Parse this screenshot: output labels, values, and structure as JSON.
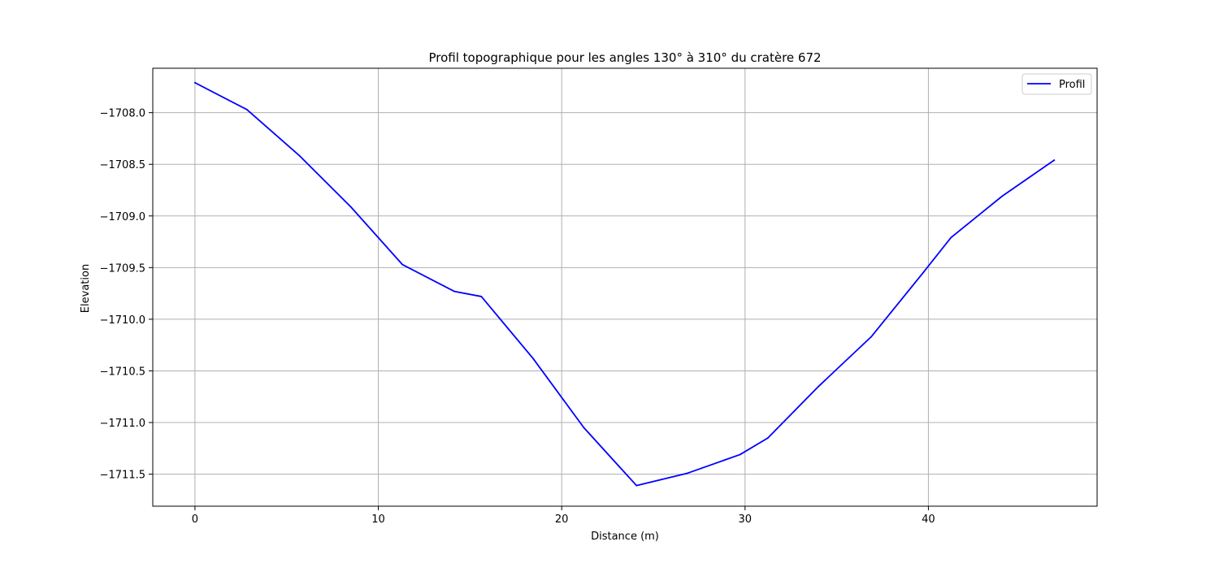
{
  "chart_data": {
    "type": "line",
    "title": "Profil topographique pour les angles 130° à 310° du cratère 672",
    "xlabel": "Distance (m)",
    "ylabel": "Elevation",
    "xlim": [
      -2.3,
      49.2
    ],
    "ylim": [
      -1711.81,
      -1707.57
    ],
    "xticks": [
      0,
      10,
      20,
      30,
      40
    ],
    "xtick_labels": [
      "0",
      "10",
      "20",
      "30",
      "40"
    ],
    "yticks": [
      -1708.0,
      -1708.5,
      -1709.0,
      -1709.5,
      -1710.0,
      -1710.5,
      -1711.0,
      -1711.5
    ],
    "ytick_labels": [
      "−1708.0",
      "−1708.5",
      "−1709.0",
      "−1709.5",
      "−1710.0",
      "−1710.5",
      "−1711.0",
      "−1711.5"
    ],
    "grid": true,
    "legend": "top-right",
    "series": [
      {
        "name": "Profil",
        "color": "#0000ff",
        "x": [
          0,
          2.83,
          5.66,
          8.49,
          11.31,
          14.14,
          15.62,
          18.44,
          21.21,
          24.08,
          26.87,
          29.73,
          31.24,
          34.01,
          36.88,
          39.71,
          41.23,
          44.01,
          46.86
        ],
        "y": [
          -1707.71,
          -1707.97,
          -1708.41,
          -1708.91,
          -1709.47,
          -1709.73,
          -1709.78,
          -1710.38,
          -1711.05,
          -1711.61,
          -1711.49,
          -1711.31,
          -1711.15,
          -1710.65,
          -1710.17,
          -1709.55,
          -1709.21,
          -1708.81,
          -1708.46
        ]
      }
    ]
  }
}
